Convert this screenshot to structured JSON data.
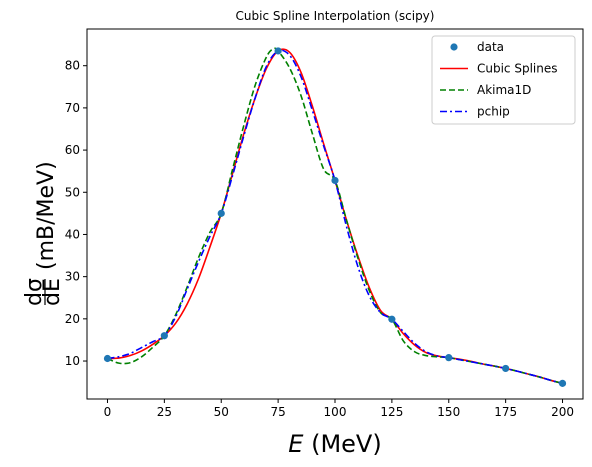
{
  "chart_data": {
    "type": "line",
    "title": "Cubic Spline Interpolation (scipy)",
    "xlabel_var": "E",
    "xlabel_unit": "(MeV)",
    "ylabel_num": "dσ",
    "ylabel_den": "dE",
    "ylabel_unit": "(mB/MeV)",
    "xlim": [
      -9,
      209
    ],
    "ylim": [
      1,
      88.7
    ],
    "xticks": [
      "0",
      "25",
      "50",
      "75",
      "100",
      "125",
      "150",
      "175",
      "200"
    ],
    "yticks": [
      "10",
      "20",
      "30",
      "40",
      "50",
      "60",
      "70",
      "80"
    ],
    "legend_position": "upper right",
    "data_points": {
      "name": "data",
      "color": "#1f77b4",
      "x": [
        0,
        25,
        50,
        75,
        100,
        125,
        150,
        175,
        200
      ],
      "y": [
        10.6,
        16.0,
        45.0,
        83.5,
        52.8,
        19.9,
        10.8,
        8.25,
        4.7
      ]
    },
    "series": [
      {
        "name": "Cubic Splines",
        "color": "#ff0000",
        "style": "solid",
        "x": [
          0,
          5,
          10,
          15,
          20,
          25,
          30,
          35,
          40,
          45,
          50,
          55,
          60,
          65,
          70,
          75,
          80,
          85,
          90,
          95,
          100,
          105,
          110,
          115,
          120,
          125,
          130,
          135,
          140,
          145,
          150,
          155,
          160,
          165,
          170,
          175,
          180,
          185,
          190,
          195,
          200
        ],
        "y": [
          10.6,
          10.7,
          11.3,
          12.4,
          14.0,
          16.0,
          19.0,
          23.5,
          29.5,
          37.0,
          45.0,
          54.5,
          64.0,
          72.5,
          79.5,
          83.5,
          83.2,
          78.5,
          70.5,
          61.5,
          52.8,
          43.5,
          35.0,
          27.5,
          22.0,
          19.9,
          16.5,
          13.8,
          12.0,
          11.2,
          10.8,
          10.4,
          9.9,
          9.3,
          8.8,
          8.25,
          7.6,
          6.9,
          6.2,
          5.4,
          4.7
        ]
      },
      {
        "name": "Akima1D",
        "color": "#008000",
        "style": "dashed",
        "x": [
          0,
          5,
          10,
          15,
          20,
          25,
          30,
          35,
          40,
          45,
          50,
          55,
          60,
          65,
          70,
          73,
          75,
          80,
          85,
          90,
          95,
          100,
          105,
          110,
          115,
          120,
          125,
          130,
          135,
          140,
          145,
          150,
          155,
          160,
          165,
          170,
          175,
          180,
          185,
          190,
          195,
          200
        ],
        "y": [
          10.6,
          9.5,
          9.6,
          11.0,
          13.3,
          16.0,
          21.0,
          27.5,
          34.5,
          40.5,
          45.0,
          55.5,
          66.0,
          75.5,
          82.2,
          84.0,
          83.5,
          79.5,
          73.0,
          64.0,
          55.5,
          52.8,
          43.5,
          34.5,
          26.8,
          21.5,
          19.9,
          14.8,
          12.2,
          11.3,
          11.0,
          10.8,
          10.3,
          9.8,
          9.3,
          8.8,
          8.25,
          7.6,
          6.9,
          6.2,
          5.4,
          4.7
        ]
      },
      {
        "name": "pchip",
        "color": "#0000ff",
        "style": "dashdot",
        "x": [
          0,
          5,
          10,
          15,
          20,
          25,
          30,
          35,
          40,
          45,
          50,
          55,
          60,
          65,
          70,
          75,
          80,
          85,
          90,
          95,
          100,
          105,
          110,
          115,
          120,
          125,
          130,
          135,
          140,
          145,
          150,
          155,
          160,
          165,
          170,
          175,
          180,
          185,
          190,
          195,
          200
        ],
        "y": [
          10.6,
          11.0,
          11.8,
          13.2,
          14.6,
          16.0,
          20.5,
          27.0,
          33.5,
          39.5,
          45.0,
          54.0,
          63.5,
          72.5,
          80.0,
          83.5,
          82.5,
          77.5,
          69.5,
          61.0,
          52.8,
          42.0,
          32.5,
          25.5,
          21.5,
          19.9,
          17.0,
          14.2,
          12.2,
          11.2,
          10.8,
          10.3,
          9.8,
          9.3,
          8.8,
          8.25,
          7.6,
          6.9,
          6.2,
          5.4,
          4.7
        ]
      }
    ]
  }
}
